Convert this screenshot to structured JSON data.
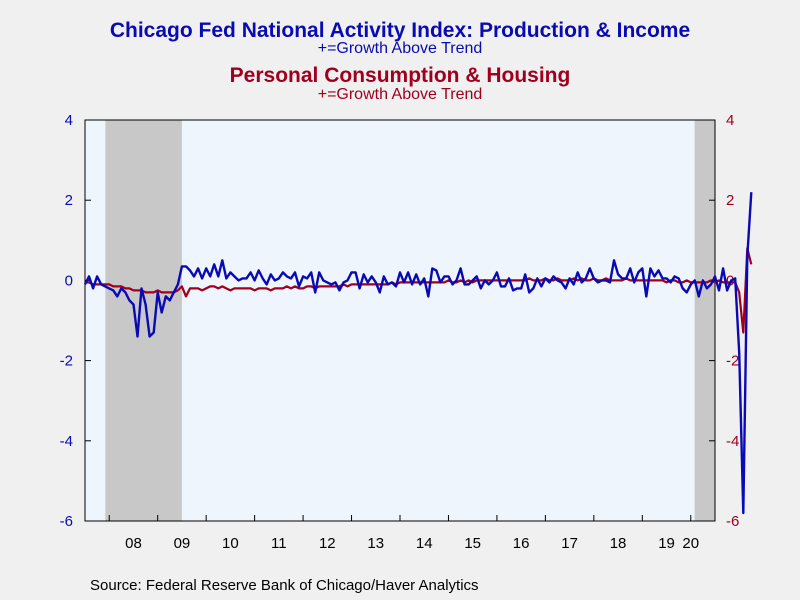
{
  "chart_data": {
    "type": "line",
    "title": "Chicago Fed National Activity Index: Production & Income",
    "subtitle": "+=Growth Above Trend",
    "title2": "Personal Consumption & Housing",
    "subtitle2": "+=Growth Above Trend",
    "source": "Source:  Federal Reserve Bank of Chicago/Haver Analytics",
    "x_start": "2007-07",
    "x_range": [
      2007.5,
      2020.5
    ],
    "ylim": [
      -6,
      4
    ],
    "yticks_left": [
      "4",
      "2",
      "0",
      "-2",
      "-4",
      "-6"
    ],
    "yticks_right": [
      "4",
      "2",
      "0",
      "-2",
      "-4",
      "-6"
    ],
    "xtick_labels": [
      "08",
      "09",
      "10",
      "11",
      "12",
      "13",
      "14",
      "15",
      "16",
      "17",
      "18",
      "19",
      "20"
    ],
    "recessions": [
      [
        2007.92,
        2009.5
      ],
      [
        2020.08,
        2020.5
      ]
    ],
    "colors": {
      "production": "#0a0ab4",
      "consumption": "#a0001e",
      "plot_bg": "#eef5fc",
      "recession": "#c8c8c8"
    },
    "series": [
      {
        "name": "Production & Income",
        "values": [
          -0.1,
          0.1,
          -0.2,
          0.1,
          -0.1,
          -0.15,
          -0.2,
          -0.25,
          -0.4,
          -0.2,
          -0.3,
          -0.5,
          -0.6,
          -1.4,
          -0.2,
          -0.6,
          -1.4,
          -1.3,
          -0.3,
          -0.8,
          -0.4,
          -0.5,
          -0.3,
          -0.1,
          0.35,
          0.35,
          0.25,
          0.1,
          0.3,
          0.05,
          0.3,
          0.1,
          0.4,
          0.1,
          0.5,
          0.05,
          0.2,
          0.1,
          0.0,
          0.05,
          0.05,
          0.2,
          0.0,
          0.25,
          0.05,
          -0.1,
          0.15,
          0.0,
          0.05,
          0.2,
          0.1,
          0.05,
          0.2,
          -0.15,
          0.1,
          0.05,
          0.2,
          -0.3,
          0.2,
          0.0,
          -0.05,
          -0.1,
          -0.05,
          -0.25,
          -0.05,
          0.0,
          0.2,
          0.2,
          -0.2,
          0.15,
          -0.05,
          0.1,
          -0.05,
          -0.3,
          0.1,
          -0.1,
          -0.05,
          -0.15,
          0.2,
          -0.05,
          0.2,
          -0.1,
          0.15,
          -0.1,
          0.05,
          -0.4,
          0.3,
          0.25,
          -0.05,
          0.1,
          0.1,
          -0.1,
          0.0,
          0.3,
          -0.1,
          -0.1,
          0.0,
          0.1,
          -0.2,
          0.0,
          -0.1,
          0.0,
          0.2,
          -0.15,
          -0.15,
          0.05,
          -0.25,
          -0.2,
          -0.2,
          0.15,
          -0.3,
          -0.2,
          0.05,
          -0.15,
          0.05,
          -0.05,
          0.1,
          0.0,
          -0.05,
          -0.2,
          0.05,
          -0.1,
          0.2,
          -0.05,
          0.05,
          0.3,
          0.05,
          -0.05,
          0.0,
          0.0,
          -0.05,
          0.5,
          0.15,
          0.05,
          0.05,
          0.3,
          -0.05,
          0.2,
          0.3,
          -0.4,
          0.3,
          0.1,
          0.25,
          0.05,
          0.05,
          -0.05,
          0.1,
          0.05,
          -0.2,
          -0.3,
          -0.1,
          0.0,
          -0.4,
          0.0,
          -0.2,
          -0.1,
          0.1,
          -0.25,
          0.3,
          -0.25,
          0.0,
          0.05,
          -1.8,
          -5.8,
          0.6,
          2.2
        ]
      },
      {
        "name": "Personal Consumption & Housing",
        "values": [
          -0.05,
          -0.05,
          -0.1,
          -0.1,
          -0.1,
          -0.1,
          -0.1,
          -0.15,
          -0.15,
          -0.15,
          -0.2,
          -0.2,
          -0.25,
          -0.25,
          -0.25,
          -0.3,
          -0.3,
          -0.3,
          -0.25,
          -0.3,
          -0.3,
          -0.3,
          -0.3,
          -0.25,
          -0.15,
          -0.4,
          -0.2,
          -0.2,
          -0.2,
          -0.25,
          -0.2,
          -0.15,
          -0.15,
          -0.2,
          -0.15,
          -0.2,
          -0.25,
          -0.2,
          -0.2,
          -0.2,
          -0.2,
          -0.2,
          -0.25,
          -0.2,
          -0.2,
          -0.2,
          -0.25,
          -0.2,
          -0.2,
          -0.2,
          -0.15,
          -0.2,
          -0.15,
          -0.2,
          -0.2,
          -0.15,
          -0.15,
          -0.2,
          -0.15,
          -0.15,
          -0.15,
          -0.15,
          -0.15,
          -0.15,
          -0.1,
          -0.15,
          -0.1,
          -0.1,
          -0.1,
          -0.1,
          -0.1,
          -0.1,
          -0.1,
          -0.1,
          -0.1,
          -0.1,
          -0.05,
          -0.1,
          -0.05,
          -0.05,
          -0.05,
          -0.05,
          -0.05,
          -0.05,
          -0.05,
          -0.05,
          -0.05,
          -0.05,
          -0.05,
          -0.05,
          0.0,
          -0.05,
          -0.05,
          0.0,
          -0.05,
          0.0,
          -0.05,
          0.0,
          0.0,
          0.0,
          0.0,
          0.0,
          0.0,
          0.0,
          0.0,
          0.0,
          0.0,
          0.0,
          0.0,
          0.0,
          0.05,
          0.0,
          0.0,
          0.0,
          0.05,
          0.0,
          0.0,
          0.05,
          0.0,
          0.0,
          0.0,
          0.05,
          0.0,
          0.05,
          0.0,
          0.0,
          0.05,
          0.0,
          0.0,
          0.05,
          0.0,
          0.0,
          0.0,
          0.0,
          0.05,
          0.0,
          0.0,
          0.0,
          0.0,
          0.0,
          0.0,
          0.0,
          0.0,
          0.0,
          -0.05,
          0.0,
          0.0,
          -0.05,
          -0.05,
          0.0,
          -0.05,
          -0.05,
          -0.05,
          -0.05,
          -0.05,
          0.0,
          -0.05,
          0.0,
          -0.05,
          -0.05,
          -0.05,
          -0.05,
          -0.3,
          -1.3,
          0.8,
          0.4
        ]
      }
    ]
  }
}
